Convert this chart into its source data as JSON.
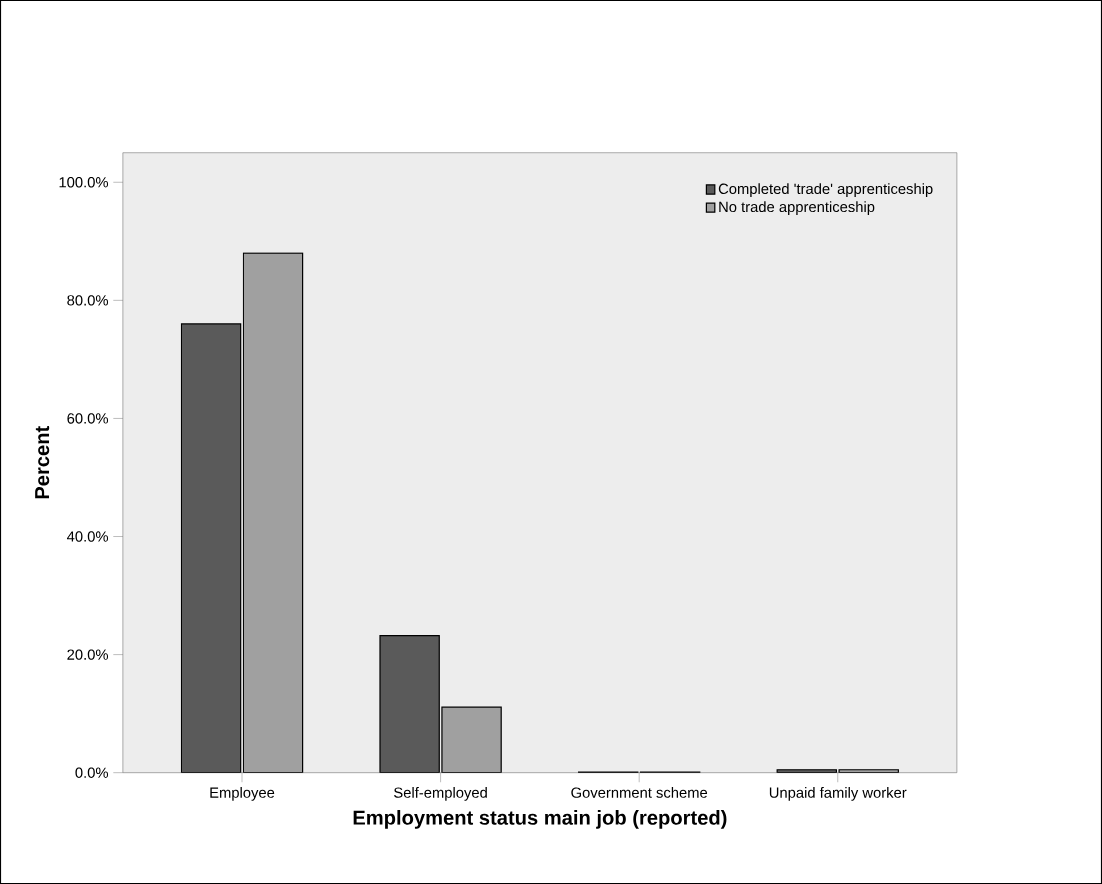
{
  "chart_data": {
    "type": "bar",
    "xlabel": "Employment status main job (reported)",
    "ylabel": "Percent",
    "categories": [
      "Employee",
      "Self-employed",
      "Government scheme",
      "Unpaid family worker"
    ],
    "series": [
      {
        "name": "Completed 'trade' apprenticeship",
        "color": "#5a5a5a",
        "values": [
          76.0,
          23.2,
          0.1,
          0.5
        ]
      },
      {
        "name": "No trade apprenticeship",
        "color": "#a0a0a0",
        "values": [
          88.0,
          11.1,
          0.1,
          0.5
        ]
      }
    ],
    "ylim": [
      0,
      105
    ],
    "yticks": [
      {
        "value": 0,
        "label": "0.0%"
      },
      {
        "value": 20,
        "label": "20.0%"
      },
      {
        "value": 40,
        "label": "40.0%"
      },
      {
        "value": 60,
        "label": "60.0%"
      },
      {
        "value": 80,
        "label": "80.0%"
      },
      {
        "value": 100,
        "label": "100.0%"
      }
    ],
    "grid": false,
    "legend": "top right"
  }
}
